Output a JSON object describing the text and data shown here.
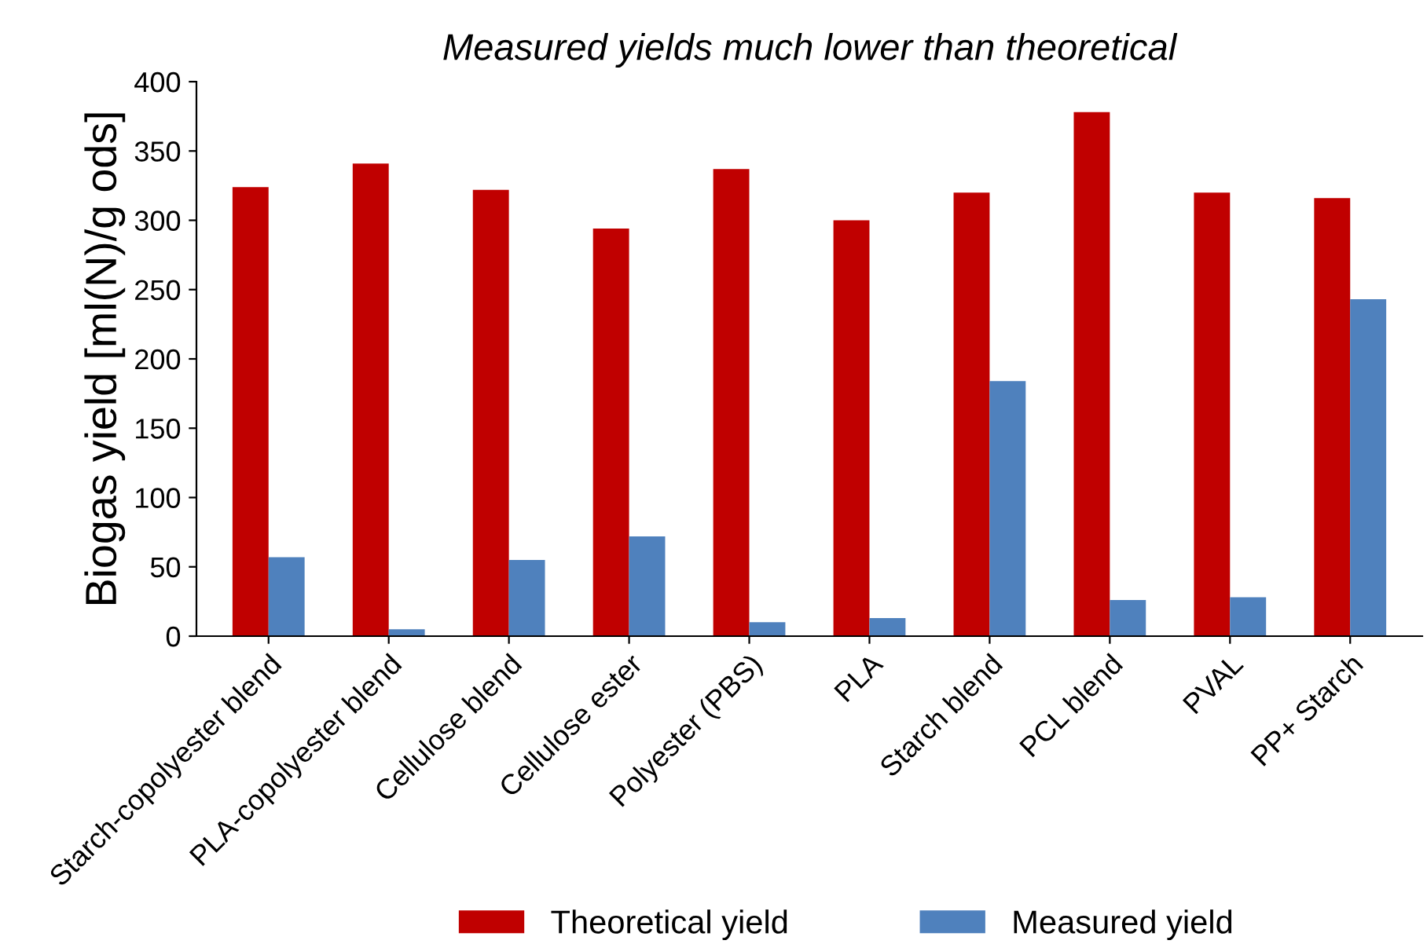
{
  "chart_data": {
    "type": "bar",
    "title": "Measured yields much lower than theoretical",
    "ylabel": "Biogas yield [ml(N)/g ods]",
    "categories": [
      "Starch-copolyester blend",
      "PLA-copolyester blend",
      "Cellulose blend",
      "Cellulose ester",
      "Polyester (PBS)",
      "PLA",
      "Starch blend",
      "PCL blend",
      "PVAL",
      "PP+ Starch"
    ],
    "series": [
      {
        "name": "Theoretical yield",
        "color": "#c00000",
        "values": [
          324,
          341,
          322,
          294,
          337,
          300,
          320,
          378,
          320,
          316
        ]
      },
      {
        "name": "Measured yield",
        "color": "#4f81bd",
        "values": [
          57,
          5,
          55,
          72,
          10,
          13,
          184,
          26,
          28,
          243
        ]
      }
    ],
    "ylim": [
      0,
      400
    ],
    "yticks": [
      0,
      50,
      100,
      150,
      200,
      250,
      300,
      350,
      400
    ],
    "grid": false,
    "legend": "bottom"
  }
}
